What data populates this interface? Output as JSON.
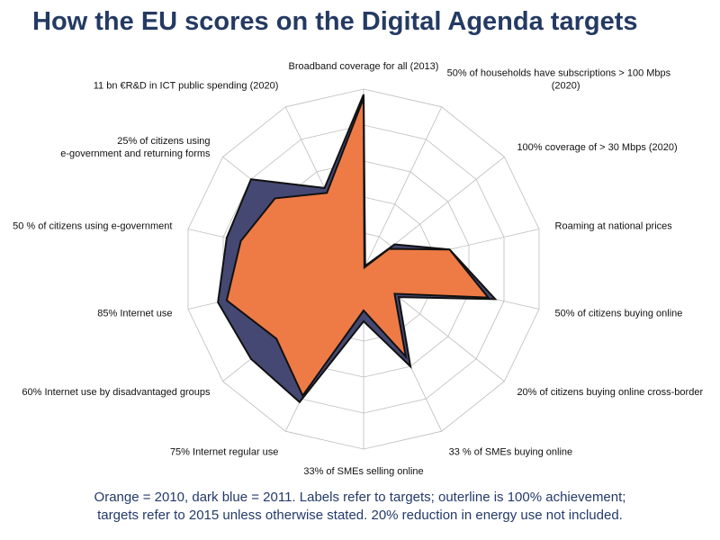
{
  "title": "How the EU scores on the Digital Agenda targets",
  "caption": {
    "line1": "Orange = 2010, dark blue = 2011. Labels refer to targets; outerline is 100% achievement;",
    "line2": "targets refer to 2015 unless otherwise stated. 20% reduction in energy use not included."
  },
  "colors": {
    "series_2010": "#ee7b45",
    "series_2011": "#454872",
    "outline": "#111111",
    "grid": "#bdbdbd",
    "title": "#243a63"
  },
  "chart_data": {
    "type": "radar",
    "title": "How the EU scores on the Digital Agenda targets",
    "range": [
      0,
      1
    ],
    "grid": true,
    "grid_rings": 5,
    "categories": [
      "Broadband coverage for all (2013)",
      "50% of households have subscriptions > 100 Mbps (2020)",
      "100% coverage of > 30 Mbps (2020)",
      "Roaming at national prices",
      "50% of citizens buying online",
      "20% of citizens buying online cross-border",
      "33 % of SMEs buying online",
      "33% of SMEs selling online",
      "75% Internet regular use",
      "60% Internet use by disadvantaged groups",
      "85% Internet use",
      "50 % of citizens using e-government",
      "25% of citizens using e-government and returning forms",
      "11 bn €R&D in ICT public spending (2020)"
    ],
    "label_lines": [
      [
        "Broadband coverage for all (2013)"
      ],
      [
        "50% of households have subscriptions > 100 Mbps",
        "(2020)"
      ],
      [
        "100% coverage of > 30 Mbps (2020)"
      ],
      [
        "Roaming at national prices"
      ],
      [
        "50% of citizens buying online"
      ],
      [
        "20% of citizens buying online cross-border"
      ],
      [
        "33 % of SMEs buying online"
      ],
      [
        "33% of SMEs selling online"
      ],
      [
        "75% Internet regular use"
      ],
      [
        "60% Internet use by disadvantaged groups"
      ],
      [
        "85% Internet use"
      ],
      [
        "50 % of citizens using e-government"
      ],
      [
        "25% of citizens using",
        "e-government and returning forms"
      ],
      [
        "11 bn €R&D in ICT public spending (2020)"
      ]
    ],
    "series": [
      {
        "name": "2011",
        "values": [
          0.97,
          0.02,
          0.22,
          0.49,
          0.75,
          0.25,
          0.6,
          0.29,
          0.82,
          0.8,
          0.83,
          0.78,
          0.8,
          0.5
        ]
      },
      {
        "name": "2010",
        "values": [
          0.95,
          0.01,
          0.18,
          0.49,
          0.71,
          0.22,
          0.54,
          0.23,
          0.78,
          0.62,
          0.78,
          0.7,
          0.63,
          0.47
        ]
      }
    ]
  }
}
